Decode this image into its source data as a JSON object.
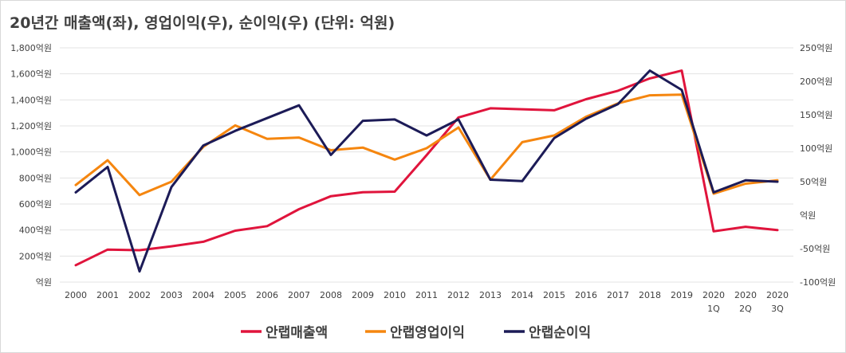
{
  "chart_data": {
    "type": "line",
    "title": "20년간 매출액(좌), 영업이익(우), 순이익(우) (단위: 억원)",
    "categories": [
      [
        "2000"
      ],
      [
        "2001"
      ],
      [
        "2002"
      ],
      [
        "2003"
      ],
      [
        "2004"
      ],
      [
        "2005"
      ],
      [
        "2006"
      ],
      [
        "2007"
      ],
      [
        "2008"
      ],
      [
        "2009"
      ],
      [
        "2010"
      ],
      [
        "2011"
      ],
      [
        "2012"
      ],
      [
        "2013"
      ],
      [
        "2014"
      ],
      [
        "2015"
      ],
      [
        "2016"
      ],
      [
        "2017"
      ],
      [
        "2018"
      ],
      [
        "2019"
      ],
      [
        "2020",
        "1Q"
      ],
      [
        "2020",
        "2Q"
      ],
      [
        "2020",
        "3Q"
      ]
    ],
    "y_left": {
      "ticks": [
        "1,800억원",
        "1,600억원",
        "1,400억원",
        "1,200억원",
        "1,000억원",
        "800억원",
        "600억원",
        "400억원",
        "200억원",
        "억원"
      ],
      "range": [
        0,
        1800
      ]
    },
    "y_right": {
      "ticks": [
        "250억원",
        "200억원",
        "150억원",
        "100억원",
        "50억원",
        "억원",
        "-50억원",
        "-100억원"
      ],
      "range": [
        -100,
        250
      ]
    },
    "grid": true,
    "legend_position": "bottom",
    "series": [
      {
        "name": "안랩매출액",
        "axis": "left",
        "color": "#e0143c",
        "values": [
          130,
          250,
          245,
          275,
          310,
          395,
          430,
          560,
          660,
          690,
          695,
          975,
          1265,
          1335,
          1328,
          1320,
          1405,
          1470,
          1565,
          1625,
          390,
          425,
          400
        ]
      },
      {
        "name": "안랩영업이익",
        "axis": "right",
        "color": "#f5860f",
        "values": [
          45,
          82,
          30,
          50,
          102,
          134,
          114,
          116,
          97,
          101,
          83,
          100,
          131,
          53,
          109,
          119,
          147,
          167,
          179,
          180,
          32,
          47,
          52
        ]
      },
      {
        "name": "안랩순이익",
        "axis": "right",
        "color": "#1c1b57",
        "values": [
          34,
          72,
          -84,
          42,
          104,
          126,
          145,
          164,
          90,
          141,
          143,
          119,
          143,
          53,
          51,
          115,
          144,
          166,
          216,
          187,
          34,
          52,
          50
        ]
      }
    ]
  }
}
